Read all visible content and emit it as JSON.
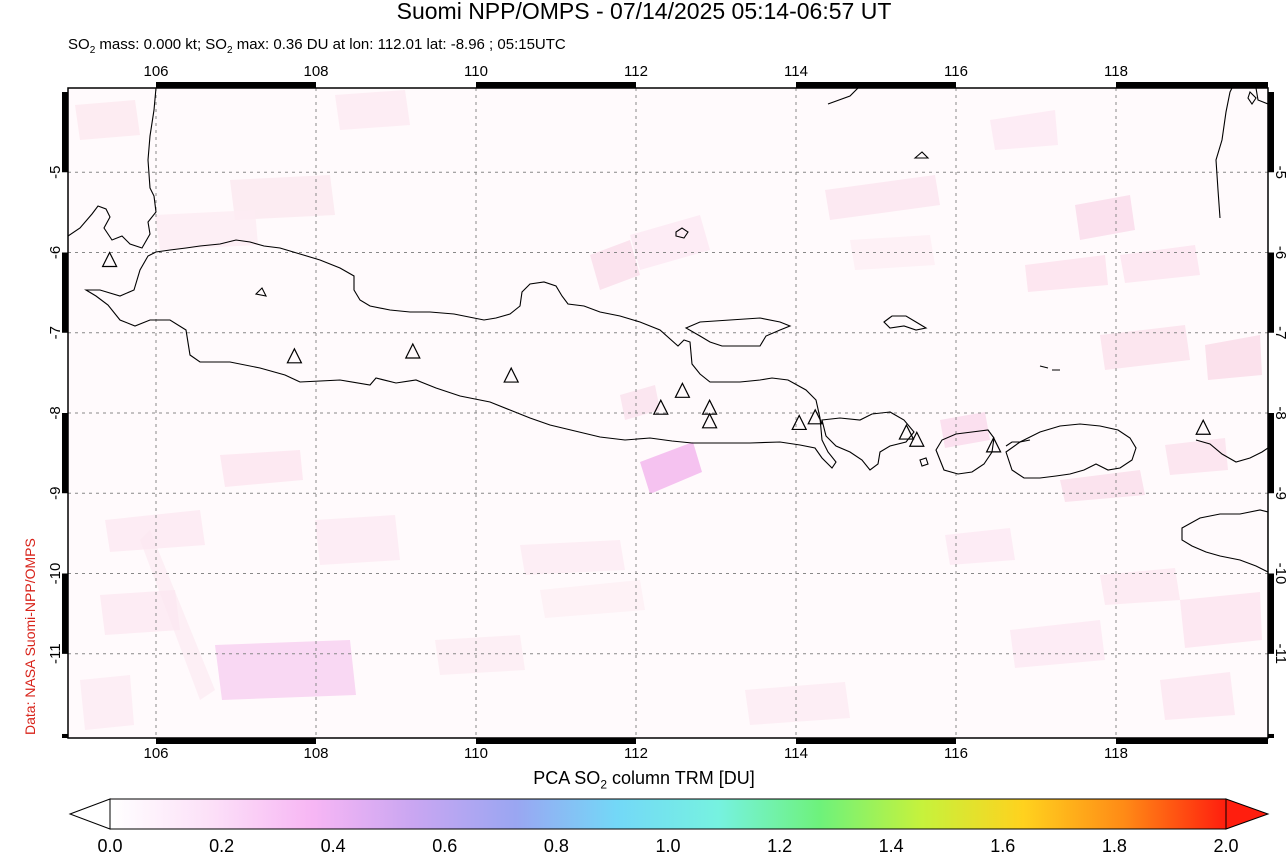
{
  "header": {
    "title": "Suomi NPP/OMPS - 07/14/2025 05:14-06:57 UT",
    "subtitle_prefix": "SO",
    "subtitle_sub1": "2",
    "subtitle_mid": " mass: 0.000 kt; SO",
    "subtitle_sub2": "2",
    "subtitle_suffix": " max: 0.36 DU at lon: 112.01 lat: -8.96 ; 05:15UTC"
  },
  "credit": "Data: NASA Suomi-NPP/OMPS",
  "map": {
    "lon_range": [
      104.9,
      119.9
    ],
    "lat_range": [
      -12.05,
      -3.95
    ],
    "lon_ticks": [
      "106",
      "108",
      "110",
      "112",
      "114",
      "116",
      "118"
    ],
    "lat_ticks": [
      "-5",
      "-6",
      "-7",
      "-8",
      "-9",
      "-10",
      "-11"
    ],
    "volcano_markers": [
      {
        "lon": 105.42,
        "lat": -6.1
      },
      {
        "lon": 107.73,
        "lat": -7.3
      },
      {
        "lon": 109.21,
        "lat": -7.24
      },
      {
        "lon": 110.44,
        "lat": -7.54
      },
      {
        "lon": 112.31,
        "lat": -7.94
      },
      {
        "lon": 112.58,
        "lat": -7.73
      },
      {
        "lon": 112.92,
        "lat": -7.94
      },
      {
        "lon": 112.92,
        "lat": -8.11
      },
      {
        "lon": 114.04,
        "lat": -8.13
      },
      {
        "lon": 114.24,
        "lat": -8.06
      },
      {
        "lon": 115.38,
        "lat": -8.25
      },
      {
        "lon": 115.51,
        "lat": -8.34
      },
      {
        "lon": 116.47,
        "lat": -8.41
      },
      {
        "lon": 119.09,
        "lat": -8.19
      }
    ],
    "max_so2_location": {
      "lon": 112.01,
      "lat": -8.96,
      "value_du": 0.36
    }
  },
  "colorbar": {
    "label_prefix": "PCA SO",
    "label_sub": "2",
    "label_suffix": " column TRM [DU]",
    "min": 0.0,
    "max": 2.0,
    "ticks": [
      "0.0",
      "0.2",
      "0.4",
      "0.6",
      "0.8",
      "1.0",
      "1.2",
      "1.4",
      "1.6",
      "1.8",
      "2.0"
    ],
    "colors": [
      "#ffffff",
      "#fce0f8",
      "#f7b6f4",
      "#c9a6f2",
      "#9aa6f2",
      "#73d8f7",
      "#76f2e0",
      "#6ef27b",
      "#c6f23c",
      "#ffd21e",
      "#ff8a16",
      "#ff1e0e"
    ]
  }
}
